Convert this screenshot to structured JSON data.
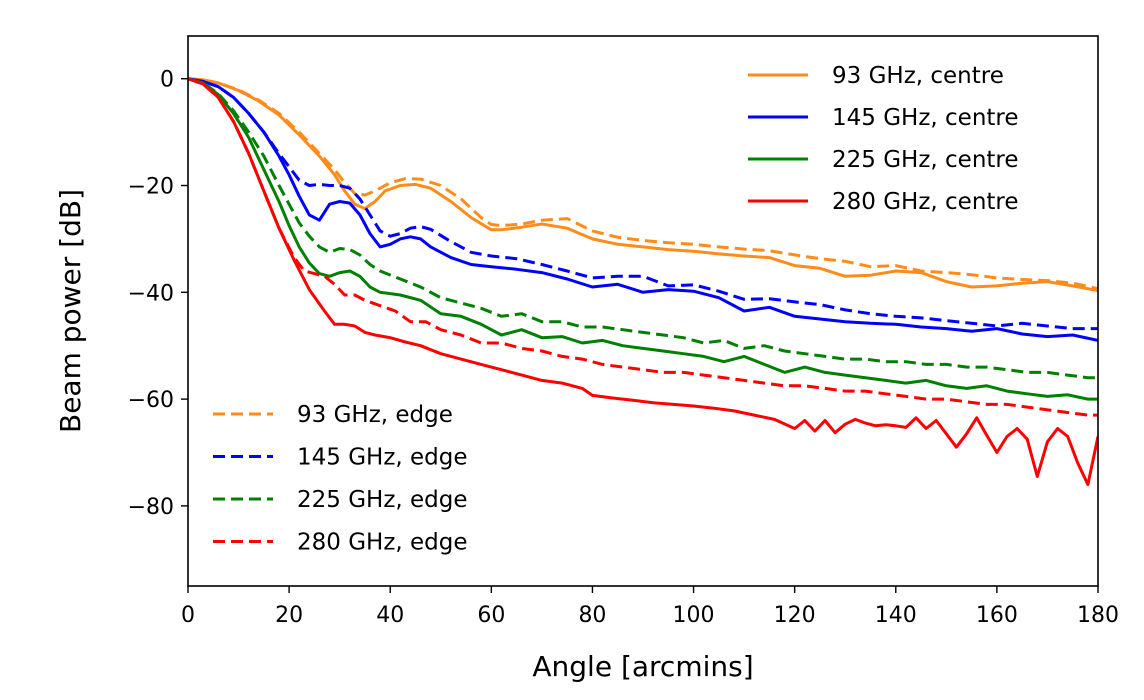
{
  "chart_data": {
    "type": "line",
    "title": "",
    "xlabel": "Angle [arcmins]",
    "ylabel": "Beam power [dB]",
    "xlim": [
      0,
      180
    ],
    "ylim": [
      -95,
      8
    ],
    "xticks": [
      0,
      20,
      40,
      60,
      80,
      100,
      120,
      140,
      160,
      180
    ],
    "yticks": [
      0,
      -20,
      -40,
      -60,
      -80
    ],
    "xtick_labels": [
      "0",
      "20",
      "40",
      "60",
      "80",
      "100",
      "120",
      "140",
      "160",
      "180"
    ],
    "ytick_labels": [
      "0",
      "−20",
      "−40",
      "−60",
      "−80"
    ],
    "grid": false,
    "legends": [
      {
        "placement": "top-right",
        "entries": [
          "93 GHz, centre",
          "145 GHz, centre",
          "225 GHz, centre",
          "280 GHz, centre"
        ]
      },
      {
        "placement": "bottom-left",
        "entries": [
          "93 GHz, edge",
          "145 GHz, edge",
          "225 GHz, edge",
          "280 GHz, edge"
        ]
      }
    ],
    "colors": {
      "93": "#ff8c1a",
      "145": "#0000ff",
      "225": "#008000",
      "280": "#ff0000"
    },
    "series": [
      {
        "name": "93 GHz, centre",
        "color": "#ff8c1a",
        "style": "solid",
        "x": [
          0,
          3,
          6,
          10,
          14,
          18,
          22,
          26,
          29,
          31,
          33,
          35,
          37,
          39,
          42,
          45,
          48,
          52,
          56,
          60,
          62,
          66,
          70,
          75,
          80,
          85,
          90,
          95,
          100,
          105,
          110,
          115,
          120,
          125,
          130,
          135,
          140,
          145,
          150,
          155,
          160,
          165,
          170,
          175,
          180
        ],
        "y": [
          0,
          -0.2,
          -0.8,
          -2.2,
          -4.2,
          -6.8,
          -10.5,
          -14.5,
          -18,
          -21,
          -23.5,
          -24.3,
          -23,
          -21,
          -20,
          -19.8,
          -20.5,
          -23,
          -26,
          -28.3,
          -28.3,
          -27.8,
          -27.2,
          -28,
          -30,
          -31,
          -31.5,
          -32,
          -32.3,
          -32.8,
          -33.2,
          -33.5,
          -35,
          -35.5,
          -37,
          -36.8,
          -36,
          -36.3,
          -38,
          -39,
          -38.8,
          -38.3,
          -38,
          -38.8,
          -39.7
        ]
      },
      {
        "name": "145 GHz, centre",
        "color": "#0000ff",
        "style": "solid",
        "x": [
          0,
          3,
          6,
          9,
          12,
          15,
          18,
          20,
          22,
          24,
          26,
          27,
          28,
          30,
          32,
          34,
          36,
          38,
          40,
          42,
          44,
          46,
          48,
          52,
          56,
          60,
          65,
          70,
          75,
          80,
          85,
          90,
          95,
          100,
          105,
          110,
          115,
          120,
          125,
          130,
          135,
          140,
          145,
          150,
          155,
          160,
          165,
          170,
          175,
          180
        ],
        "y": [
          0,
          -0.5,
          -1.5,
          -3.5,
          -6.5,
          -10,
          -14.5,
          -18,
          -22,
          -25.5,
          -26.5,
          -25,
          -23.5,
          -23,
          -23.3,
          -25.5,
          -29,
          -31.5,
          -31,
          -30,
          -29.6,
          -30,
          -31.5,
          -33.5,
          -34.8,
          -35.2,
          -35.7,
          -36.3,
          -37.5,
          -39,
          -38.5,
          -40,
          -39.5,
          -39.8,
          -41,
          -43.5,
          -42.8,
          -44.5,
          -45,
          -45.5,
          -45.8,
          -46,
          -46.5,
          -46.8,
          -47.3,
          -46.8,
          -47.8,
          -48.3,
          -48,
          -49
        ]
      },
      {
        "name": "225 GHz, centre",
        "color": "#008000",
        "style": "solid",
        "x": [
          0,
          3,
          6,
          9,
          12,
          15,
          18,
          20,
          22,
          24,
          26,
          28,
          30,
          32,
          34,
          36,
          38,
          42,
          46,
          50,
          54,
          58,
          62,
          66,
          70,
          74,
          78,
          82,
          86,
          90,
          94,
          98,
          102,
          106,
          110,
          114,
          118,
          122,
          126,
          130,
          134,
          138,
          142,
          146,
          150,
          154,
          158,
          162,
          166,
          170,
          174,
          178,
          180
        ],
        "y": [
          0,
          -0.8,
          -3,
          -6.5,
          -11,
          -17,
          -23,
          -27.5,
          -31.5,
          -34.5,
          -36.5,
          -37,
          -36.3,
          -36,
          -37,
          -39,
          -40,
          -40.5,
          -41.5,
          -44,
          -44.5,
          -46,
          -48,
          -47,
          -48.5,
          -48.3,
          -49.5,
          -49,
          -50,
          -50.5,
          -51,
          -51.5,
          -52,
          -53,
          -52,
          -53.5,
          -55,
          -54,
          -55,
          -55.5,
          -56,
          -56.5,
          -57,
          -56.5,
          -57.5,
          -58,
          -57.5,
          -58.5,
          -59,
          -59.5,
          -59.2,
          -60,
          -60
        ]
      },
      {
        "name": "280 GHz, centre",
        "color": "#ff0000",
        "style": "solid",
        "x": [
          0,
          3,
          6,
          9,
          12,
          15,
          18,
          21,
          24,
          27,
          29,
          31,
          33,
          35,
          37,
          40,
          43,
          46,
          50,
          54,
          58,
          62,
          66,
          70,
          74,
          78,
          80,
          84,
          88,
          92,
          96,
          100,
          104,
          108,
          112,
          116,
          120,
          122,
          124,
          126,
          128,
          130,
          132,
          134,
          136,
          138,
          140,
          142,
          144,
          146,
          148,
          150,
          152,
          154,
          156,
          158,
          160,
          162,
          164,
          166,
          168,
          170,
          172,
          174,
          176,
          178,
          180
        ],
        "y": [
          0,
          -1,
          -3.5,
          -8,
          -14,
          -21,
          -28,
          -34,
          -39.5,
          -43.5,
          -46,
          -46,
          -46.3,
          -47.5,
          -48,
          -48.5,
          -49.3,
          -50,
          -51.5,
          -52.5,
          -53.5,
          -54.5,
          -55.5,
          -56.5,
          -57,
          -58,
          -59.3,
          -59.8,
          -60.2,
          -60.7,
          -61,
          -61.3,
          -61.7,
          -62.2,
          -63,
          -63.8,
          -65.5,
          -64,
          -66,
          -64,
          -66.3,
          -64.7,
          -63.8,
          -64.5,
          -65,
          -64.8,
          -65,
          -65.3,
          -63.5,
          -65.5,
          -64,
          -66.5,
          -69,
          -66.5,
          -63.5,
          -66.8,
          -70,
          -67,
          -65.5,
          -67.5,
          -74.5,
          -68,
          -65.5,
          -67,
          -72,
          -76,
          -67
        ]
      },
      {
        "name": "93 GHz, edge",
        "color": "#ff8c1a",
        "style": "dashed",
        "x": [
          0,
          3,
          6,
          10,
          14,
          18,
          22,
          26,
          29,
          31,
          33,
          35,
          37,
          40,
          43,
          46,
          50,
          54,
          58,
          60,
          62,
          66,
          70,
          75,
          80,
          85,
          90,
          95,
          100,
          105,
          110,
          115,
          120,
          125,
          130,
          135,
          140,
          145,
          150,
          155,
          160,
          165,
          170,
          175,
          180
        ],
        "y": [
          0,
          -0.2,
          -0.8,
          -2.1,
          -4,
          -6.5,
          -10,
          -14,
          -17,
          -19.5,
          -21.5,
          -21.8,
          -21,
          -19.5,
          -18.7,
          -18.8,
          -20,
          -22.5,
          -26,
          -27.3,
          -27.5,
          -27.2,
          -26.5,
          -26.2,
          -28.5,
          -29.7,
          -30.3,
          -30.7,
          -31,
          -31.5,
          -31.9,
          -32.2,
          -33,
          -33.7,
          -34.2,
          -35.2,
          -35,
          -36,
          -36.3,
          -36.7,
          -37.3,
          -37.6,
          -37.8,
          -38.3,
          -39.3
        ]
      },
      {
        "name": "145 GHz, edge",
        "color": "#0000ff",
        "style": "dashed",
        "x": [
          0,
          3,
          6,
          9,
          12,
          15,
          18,
          20,
          22,
          24,
          26,
          28,
          30,
          32,
          34,
          36,
          38,
          40,
          42,
          44,
          46,
          48,
          52,
          56,
          60,
          65,
          70,
          75,
          80,
          85,
          90,
          95,
          100,
          105,
          110,
          115,
          120,
          125,
          130,
          135,
          140,
          145,
          150,
          155,
          160,
          165,
          170,
          175,
          180
        ],
        "y": [
          0,
          -0.5,
          -1.5,
          -3.5,
          -6.5,
          -10,
          -14,
          -16.5,
          -19,
          -20,
          -19.8,
          -20,
          -20,
          -20.5,
          -22.5,
          -25.5,
          -28.5,
          -29.5,
          -29,
          -28,
          -27.7,
          -28.2,
          -30.5,
          -32.5,
          -33.2,
          -33.7,
          -34.8,
          -36,
          -37.3,
          -37,
          -37,
          -38.8,
          -38.6,
          -39.8,
          -41.3,
          -41.2,
          -41.8,
          -42.3,
          -43.3,
          -44,
          -44.5,
          -44.8,
          -45.3,
          -45.8,
          -46.3,
          -45.8,
          -46.3,
          -46.8,
          -46.8
        ]
      },
      {
        "name": "225 GHz, edge",
        "color": "#008000",
        "style": "dashed",
        "x": [
          0,
          3,
          6,
          9,
          12,
          15,
          18,
          20,
          22,
          24,
          26,
          28,
          30,
          32,
          34,
          36,
          38,
          42,
          46,
          50,
          54,
          58,
          62,
          66,
          70,
          74,
          78,
          82,
          86,
          90,
          94,
          98,
          102,
          106,
          110,
          114,
          118,
          122,
          126,
          130,
          134,
          138,
          142,
          146,
          150,
          154,
          158,
          162,
          166,
          170,
          174,
          178,
          180
        ],
        "y": [
          0,
          -0.8,
          -2.8,
          -6,
          -10,
          -14.5,
          -20,
          -23.5,
          -27,
          -29.5,
          -31.5,
          -32.5,
          -31.8,
          -32,
          -33,
          -34.8,
          -36,
          -37.5,
          -39,
          -41,
          -42,
          -43,
          -44.5,
          -44,
          -45.5,
          -45.5,
          -46.5,
          -46.5,
          -47,
          -47.5,
          -48,
          -48.5,
          -49.5,
          -49,
          -50.5,
          -50,
          -51,
          -51.5,
          -52,
          -52.5,
          -52.5,
          -53,
          -53,
          -53.5,
          -53.5,
          -54,
          -54,
          -54.5,
          -55,
          -55,
          -55.5,
          -56,
          -56
        ]
      },
      {
        "name": "280 GHz, edge",
        "color": "#ff0000",
        "style": "dashed",
        "x": [
          0,
          3,
          6,
          9,
          12,
          15,
          18,
          21,
          23,
          25,
          27,
          29,
          31,
          33,
          35,
          38,
          41,
          44,
          47,
          50,
          54,
          58,
          62,
          66,
          70,
          74,
          78,
          82,
          86,
          90,
          94,
          98,
          102,
          106,
          110,
          114,
          118,
          122,
          126,
          130,
          134,
          138,
          142,
          146,
          150,
          154,
          158,
          162,
          166,
          170,
          174,
          178,
          180
        ],
        "y": [
          0,
          -1,
          -3.5,
          -8,
          -14,
          -21,
          -28,
          -33.5,
          -36,
          -36.5,
          -37,
          -38.5,
          -40.5,
          -40.5,
          -41.5,
          -42.5,
          -43.5,
          -45.5,
          -45.5,
          -47,
          -48,
          -49.5,
          -49.5,
          -50.5,
          -51,
          -52,
          -52.5,
          -53.5,
          -54,
          -54.5,
          -55,
          -55,
          -55.5,
          -56,
          -56.5,
          -57,
          -57.5,
          -57.5,
          -58,
          -58.5,
          -58.5,
          -59,
          -59.5,
          -60,
          -60,
          -60.5,
          -61,
          -61,
          -61.5,
          -62,
          -62.5,
          -63,
          -63
        ]
      }
    ]
  }
}
